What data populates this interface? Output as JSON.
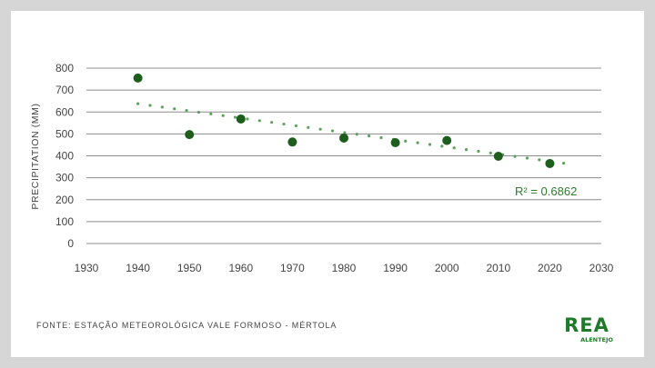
{
  "colors": {
    "marker": "#1d5e1d",
    "trendline": "#5ea25e",
    "grid": "#8c8c8c",
    "axis_text": "#444444",
    "logo": "#1f7a2b"
  },
  "chart_data": {
    "type": "scatter",
    "title": "",
    "xlabel": "",
    "ylabel": "PRECIPITATION (MM)",
    "xlim": [
      1930,
      2030
    ],
    "ylim": [
      0,
      800
    ],
    "xticks": [
      "1930",
      "1940",
      "1950",
      "1960",
      "1970",
      "1980",
      "1990",
      "2000",
      "2010",
      "2020",
      "2030"
    ],
    "yticks": [
      "0",
      "100",
      "200",
      "300",
      "400",
      "500",
      "600",
      "700",
      "800"
    ],
    "grid": "horizontal",
    "points": [
      {
        "x": 1940,
        "y": 755
      },
      {
        "x": 1950,
        "y": 497
      },
      {
        "x": 1960,
        "y": 568
      },
      {
        "x": 1970,
        "y": 463
      },
      {
        "x": 1980,
        "y": 481
      },
      {
        "x": 1990,
        "y": 460
      },
      {
        "x": 2000,
        "y": 470
      },
      {
        "x": 2010,
        "y": 398
      },
      {
        "x": 2020,
        "y": 365
      }
    ],
    "trendline": {
      "type": "linear",
      "x_start": 1940,
      "x_end": 2024,
      "y_start": 638,
      "y_end": 362,
      "style": "dotted"
    },
    "annotations": [
      {
        "text": "R² = 0.6862"
      }
    ]
  },
  "footer": {
    "source": "FONTE: ESTAÇÃO METEOROLÓGICA VALE FORMOSO - MÉRTOLA"
  },
  "logo": {
    "text": "REA",
    "subtext": "ALENTEJO"
  }
}
